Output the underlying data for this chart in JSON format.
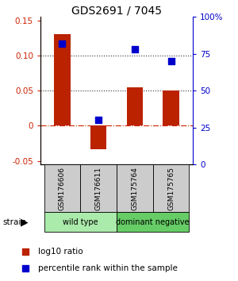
{
  "title": "GDS2691 / 7045",
  "samples": [
    "GSM176606",
    "GSM176611",
    "GSM175764",
    "GSM175765"
  ],
  "log10_ratio": [
    0.13,
    -0.033,
    0.055,
    0.05
  ],
  "percentile_rank": [
    82,
    30,
    78,
    70
  ],
  "bar_color": "#bb2200",
  "dot_color": "#0000cc",
  "ylim_left": [
    -0.055,
    0.155
  ],
  "ylim_right": [
    0,
    100
  ],
  "yticks_left": [
    -0.05,
    0.0,
    0.05,
    0.1,
    0.15
  ],
  "ytick_labels_left": [
    "-0.05",
    "0",
    "0.05",
    "0.10",
    "0.15"
  ],
  "yticks_right": [
    0,
    25,
    50,
    75,
    100
  ],
  "ytick_labels_right": [
    "0",
    "25",
    "50",
    "75",
    "100%"
  ],
  "hline_y": [
    0.0,
    0.05,
    0.1
  ],
  "hline_styles": [
    "dashdot",
    "dotted",
    "dotted"
  ],
  "hline_colors": [
    "#cc2200",
    "#333333",
    "#333333"
  ],
  "bar_width": 0.45,
  "dot_size": 35,
  "sample_box_color": "#cccccc",
  "wt_color": "#aaeaaa",
  "dn_color": "#66cc66",
  "legend_items": [
    {
      "color": "#bb2200",
      "label": "log10 ratio"
    },
    {
      "color": "#0000cc",
      "label": "percentile rank within the sample"
    }
  ]
}
